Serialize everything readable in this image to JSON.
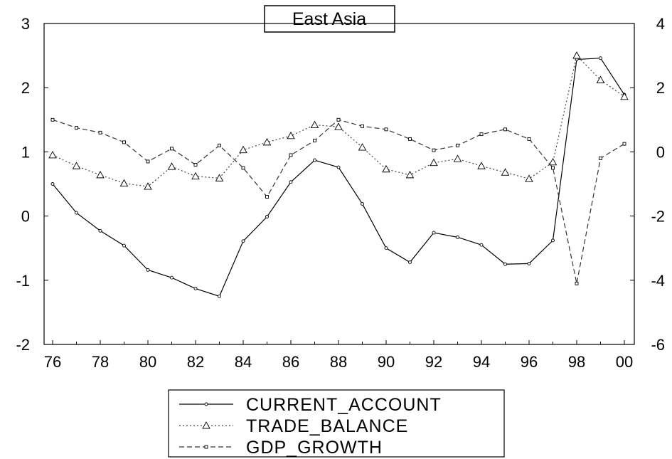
{
  "chart_data": {
    "type": "line",
    "title": "East Asia",
    "xlabel": "",
    "ylabel": "",
    "grid": false,
    "legend_position": "bottom",
    "x": [
      76,
      77,
      78,
      79,
      80,
      81,
      82,
      83,
      84,
      85,
      86,
      87,
      88,
      89,
      90,
      91,
      92,
      93,
      94,
      95,
      96,
      97,
      98,
      99,
      100
    ],
    "x_tick_labels": [
      "76",
      "78",
      "80",
      "82",
      "84",
      "86",
      "88",
      "90",
      "92",
      "94",
      "96",
      "98",
      "00"
    ],
    "left_axis": {
      "ylim": [
        -2,
        3
      ],
      "ticks": [
        "3",
        "2",
        "1",
        "0",
        "-1",
        "-2"
      ]
    },
    "right_axis": {
      "ylim": [
        -6,
        4
      ],
      "ticks": [
        "4",
        "2",
        "0",
        "-2",
        "-4",
        "-6"
      ]
    },
    "series": [
      {
        "name": "CURRENT_ACCOUNT",
        "axis": "left",
        "style": "solid",
        "marker": "circle",
        "values": [
          0.5,
          0.05,
          -0.23,
          -0.46,
          -0.84,
          -0.96,
          -1.13,
          -1.25,
          -0.39,
          -0.01,
          0.53,
          0.87,
          0.76,
          0.19,
          -0.5,
          -0.72,
          -0.26,
          -0.33,
          -0.45,
          -0.75,
          -0.74,
          -0.38,
          2.44,
          2.46,
          1.89
        ]
      },
      {
        "name": "TRADE_BALANCE",
        "axis": "left",
        "style": "dotted",
        "marker": "triangle",
        "values": [
          0.95,
          0.78,
          0.64,
          0.51,
          0.46,
          0.77,
          0.62,
          0.59,
          1.03,
          1.15,
          1.25,
          1.42,
          1.39,
          1.07,
          0.73,
          0.64,
          0.83,
          0.89,
          0.78,
          0.68,
          0.58,
          0.84,
          2.5,
          2.12,
          1.86
        ]
      },
      {
        "name": "GDP_GROWTH",
        "axis": "right",
        "style": "dashed",
        "marker": "square",
        "values": [
          1.0,
          0.75,
          0.6,
          0.3,
          -0.3,
          0.1,
          -0.4,
          0.2,
          -0.5,
          -1.4,
          -0.1,
          0.35,
          1.0,
          0.8,
          0.7,
          0.4,
          0.05,
          0.2,
          0.55,
          0.7,
          0.4,
          -0.5,
          -4.1,
          -0.2,
          0.25
        ]
      }
    ]
  }
}
